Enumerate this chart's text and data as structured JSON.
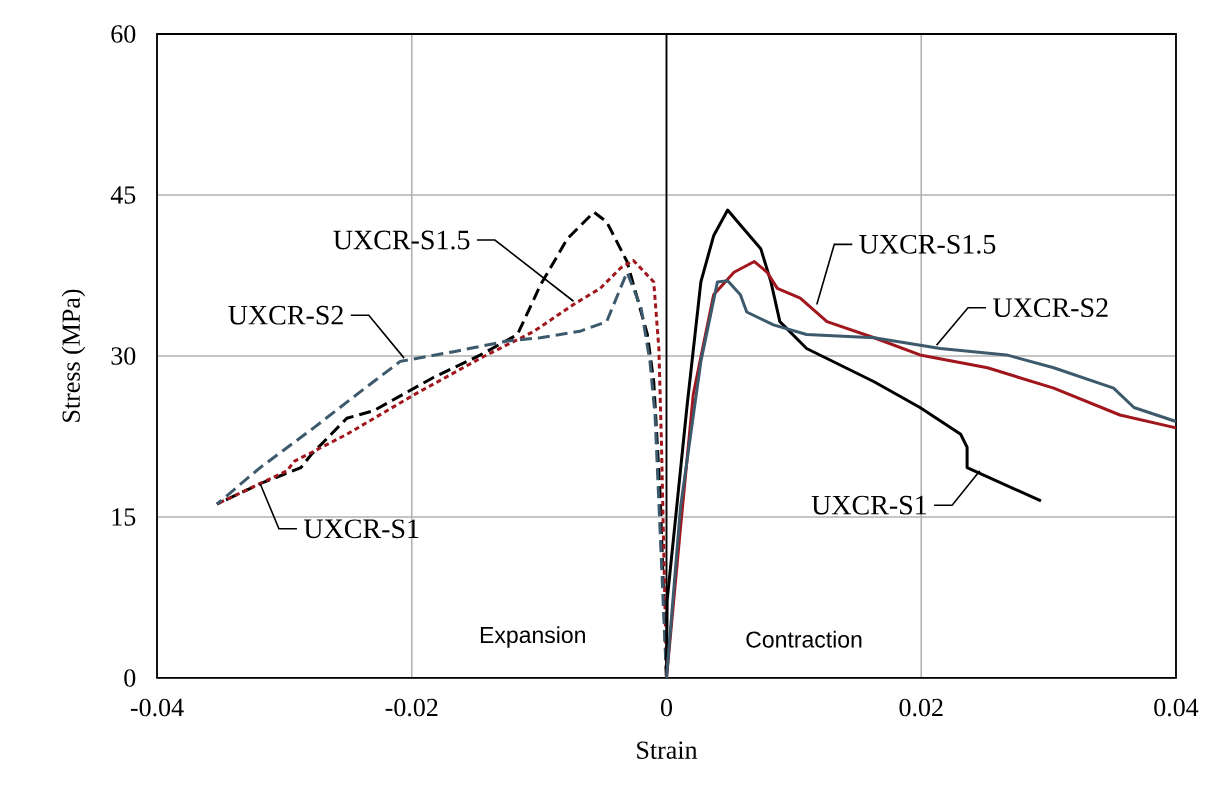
{
  "chart_data": {
    "type": "line",
    "xlabel": "Strain",
    "ylabel": "Stress (MPa)",
    "xlim": [
      -0.04,
      0.04
    ],
    "ylim": [
      0,
      60
    ],
    "xticks": [
      -0.04,
      -0.02,
      0,
      0.02,
      0.04
    ],
    "yticks": [
      0,
      15,
      30,
      45,
      60
    ],
    "grid": true,
    "marker": "none",
    "series": [
      {
        "color": "#000000",
        "line_style": "dashed",
        "x": [
          0,
          -0.0005,
          -0.001,
          -0.0015,
          -0.0031,
          -0.0047,
          -0.0057,
          -0.0078,
          -0.0099,
          -0.0117,
          -0.0146,
          -0.0183,
          -0.023,
          -0.0251,
          -0.0279,
          -0.0287,
          -0.0319,
          -0.0353
        ],
        "values": [
          0,
          17.1,
          27.6,
          32.0,
          38.8,
          42.5,
          43.4,
          40.9,
          36.6,
          32.0,
          30.1,
          28.0,
          24.9,
          24.2,
          20.8,
          19.6,
          18.1,
          16.2
        ]
      },
      {
        "color": "#a0161c",
        "line_style": "dotted",
        "x": [
          0,
          -0.0004,
          -0.0006,
          -0.001,
          -0.0026,
          -0.0036,
          -0.0052,
          -0.0073,
          -0.0104,
          -0.0146,
          -0.0198,
          -0.0251,
          -0.0292,
          -0.0298,
          -0.0353
        ],
        "values": [
          0,
          22.1,
          30.7,
          36.9,
          38.9,
          38.2,
          36.3,
          34.8,
          32.3,
          29.8,
          26.4,
          22.7,
          20.2,
          19.3,
          16.2
        ]
      },
      {
        "color": "#3d5a6c",
        "line_style": "dashed",
        "x": [
          0,
          -0.0009,
          -0.0013,
          -0.002,
          -0.0031,
          -0.0047,
          -0.0068,
          -0.0099,
          -0.0125,
          -0.0167,
          -0.0209,
          -0.024,
          -0.0277,
          -0.0319,
          -0.0353
        ],
        "values": [
          0,
          24.5,
          29.5,
          34.5,
          37.8,
          33.2,
          32.3,
          31.7,
          31.4,
          30.4,
          29.5,
          26.7,
          23.3,
          19.6,
          16.2
        ]
      },
      {
        "color": "#000000",
        "line_style": "solid",
        "x": [
          0,
          5e-05,
          0.0016,
          0.0027,
          0.0037,
          0.0048,
          0.0058,
          0.0074,
          0.0082,
          0.0089,
          0.011,
          0.0163,
          0.0199,
          0.0231,
          0.0236,
          0.0236,
          0.0294
        ],
        "values": [
          0,
          7.2,
          25.2,
          36.9,
          41.2,
          43.6,
          42.2,
          40.0,
          36.9,
          33.2,
          30.7,
          27.6,
          25.2,
          22.7,
          21.5,
          19.6,
          16.5
        ]
      },
      {
        "color": "#a0161c",
        "line_style": "solid",
        "x": [
          0,
          0.0011,
          0.0021,
          0.0037,
          0.0053,
          0.0069,
          0.0079,
          0.0087,
          0.0105,
          0.0126,
          0.0163,
          0.0199,
          0.0252,
          0.0304,
          0.0356,
          0.04
        ],
        "values": [
          0,
          14.0,
          26.4,
          35.7,
          37.8,
          38.8,
          37.8,
          36.3,
          35.4,
          33.2,
          31.7,
          30.1,
          28.9,
          27.0,
          24.5,
          23.3
        ]
      },
      {
        "color": "#3d5a6c",
        "line_style": "solid",
        "x": [
          0,
          0.0011,
          0.0027,
          0.004,
          0.0048,
          0.0058,
          0.0063,
          0.0084,
          0.011,
          0.0163,
          0.0215,
          0.0267,
          0.0304,
          0.0351,
          0.0367,
          0.04
        ],
        "values": [
          0,
          15.9,
          29.5,
          36.9,
          37.0,
          35.7,
          34.1,
          32.9,
          32.0,
          31.7,
          30.7,
          30.1,
          28.9,
          27.0,
          25.2,
          23.9
        ]
      }
    ],
    "annotations": [
      {
        "text": "UXCR-S1.5",
        "x": -0.0073,
        "y": 35.1
      },
      {
        "text": "UXCR-S2",
        "x": -0.0206,
        "y": 29.8
      },
      {
        "text": "UXCR-S1",
        "x": -0.0319,
        "y": 18.1
      },
      {
        "text": "UXCR-S1.5",
        "x": 0.0118,
        "y": 34.8
      },
      {
        "text": "UXCR-S2",
        "x": 0.0212,
        "y": 31.0
      },
      {
        "text": "UXCR-S1",
        "x": 0.0246,
        "y": 19.3
      },
      "Expansion",
      "Contraction"
    ]
  }
}
